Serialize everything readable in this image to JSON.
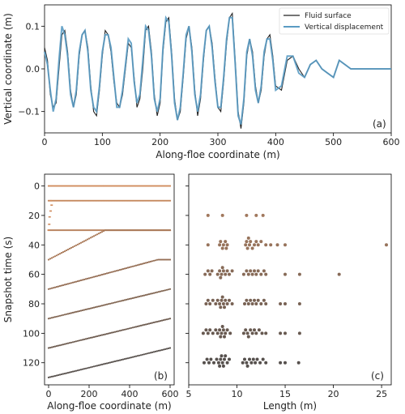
{
  "colors": {
    "fluid": "#222222",
    "displacement": "#5a9bc3",
    "axis": "#000000",
    "b_early": "#d08a5a",
    "b_late": "#4a4a4a",
    "c_early": "#b08060",
    "c_late": "#4a4a4a"
  },
  "chart_data": [
    {
      "panel": "a",
      "type": "line",
      "panel_label": "(a)",
      "xlabel": "Along-floe coordinate (m)",
      "ylabel": "Vertical coordinate (m)",
      "xlim": [
        0,
        600
      ],
      "ylim": [
        -0.15,
        0.15
      ],
      "xticks": [
        0,
        100,
        200,
        300,
        400,
        500,
        600
      ],
      "yticks": [
        -0.1,
        0.0,
        0.1
      ],
      "ytick_labels": [
        "−0.1",
        "0.0",
        "0.1"
      ],
      "legend": {
        "placement": "top-right",
        "entries": [
          "Fluid surface",
          "Vertical displacement"
        ]
      },
      "series": [
        {
          "name": "Fluid surface",
          "color_key": "fluid",
          "x": [
            0,
            5,
            10,
            15,
            20,
            25,
            30,
            35,
            40,
            45,
            50,
            55,
            60,
            65,
            70,
            75,
            80,
            85,
            90,
            95,
            100,
            105,
            110,
            115,
            120,
            125,
            130,
            135,
            140,
            145,
            150,
            155,
            160,
            165,
            170,
            175,
            180,
            185,
            190,
            195,
            200,
            205,
            210,
            215,
            220,
            225,
            230,
            235,
            240,
            245,
            250,
            255,
            260,
            265,
            270,
            275,
            280,
            285,
            290,
            295,
            300,
            305,
            310,
            315,
            320,
            325,
            330,
            335,
            340,
            345,
            350,
            355,
            360,
            365,
            370,
            375,
            380,
            385,
            390,
            395,
            400,
            410,
            420,
            430,
            440,
            450,
            460,
            470,
            480,
            490,
            500,
            510,
            520,
            530,
            540,
            550,
            560,
            570,
            580,
            590,
            600
          ],
          "y": [
            0.05,
            0.02,
            -0.06,
            -0.09,
            -0.08,
            0.0,
            0.08,
            0.09,
            0.04,
            -0.05,
            -0.09,
            -0.06,
            0.03,
            0.08,
            0.09,
            0.05,
            -0.04,
            -0.1,
            -0.11,
            -0.05,
            0.03,
            0.09,
            0.08,
            0.04,
            -0.03,
            -0.08,
            -0.09,
            -0.06,
            0.0,
            0.06,
            0.05,
            -0.02,
            -0.09,
            -0.07,
            0.0,
            0.09,
            0.1,
            0.04,
            -0.06,
            -0.11,
            -0.08,
            0.04,
            0.11,
            0.12,
            0.04,
            -0.07,
            -0.12,
            -0.1,
            -0.02,
            0.07,
            0.1,
            0.05,
            -0.05,
            -0.11,
            -0.07,
            0.02,
            0.09,
            0.1,
            0.06,
            -0.02,
            -0.09,
            -0.1,
            -0.03,
            0.06,
            0.12,
            0.13,
            0.02,
            -0.1,
            -0.14,
            -0.08,
            0.03,
            0.07,
            0.04,
            -0.04,
            -0.08,
            -0.05,
            0.03,
            0.07,
            0.08,
            0.03,
            -0.04,
            -0.05,
            0.02,
            0.03,
            0.0,
            -0.02,
            0.01,
            0.02,
            0.0,
            -0.01,
            -0.02,
            0.02,
            0.01,
            0.0,
            0.0,
            0.0,
            0.0,
            0.0,
            0.0,
            0.0,
            0.0
          ]
        },
        {
          "name": "Vertical displacement",
          "color_key": "displacement",
          "x": [
            0,
            5,
            10,
            15,
            20,
            25,
            30,
            35,
            40,
            45,
            50,
            55,
            60,
            65,
            70,
            75,
            80,
            85,
            90,
            95,
            100,
            105,
            110,
            115,
            120,
            125,
            130,
            135,
            140,
            145,
            150,
            155,
            160,
            165,
            170,
            175,
            180,
            185,
            190,
            195,
            200,
            205,
            210,
            215,
            220,
            225,
            230,
            235,
            240,
            245,
            250,
            255,
            260,
            265,
            270,
            275,
            280,
            285,
            290,
            295,
            300,
            305,
            310,
            315,
            320,
            325,
            330,
            335,
            340,
            345,
            350,
            355,
            360,
            365,
            370,
            375,
            380,
            385,
            390,
            395,
            400,
            410,
            420,
            430,
            440,
            450,
            460,
            470,
            480,
            490,
            500,
            510,
            520,
            530,
            540,
            550,
            560,
            570,
            580,
            590,
            600
          ],
          "y": [
            0.04,
            0.01,
            -0.05,
            -0.1,
            -0.07,
            0.02,
            0.1,
            0.08,
            0.03,
            -0.06,
            -0.09,
            -0.05,
            0.04,
            0.08,
            0.09,
            0.04,
            -0.05,
            -0.09,
            -0.1,
            -0.04,
            0.04,
            0.08,
            0.08,
            0.05,
            -0.02,
            -0.09,
            -0.09,
            -0.05,
            0.01,
            0.07,
            0.06,
            -0.03,
            -0.08,
            -0.06,
            0.02,
            0.1,
            0.09,
            0.03,
            -0.07,
            -0.1,
            -0.07,
            0.05,
            0.12,
            0.11,
            0.03,
            -0.08,
            -0.12,
            -0.09,
            -0.01,
            0.08,
            0.1,
            0.04,
            -0.06,
            -0.1,
            -0.06,
            0.03,
            0.09,
            0.1,
            0.05,
            -0.03,
            -0.09,
            -0.09,
            -0.02,
            0.07,
            0.12,
            0.12,
            0.01,
            -0.11,
            -0.13,
            -0.07,
            0.04,
            0.07,
            0.03,
            -0.05,
            -0.08,
            -0.04,
            0.04,
            0.07,
            0.07,
            0.02,
            -0.05,
            -0.04,
            0.03,
            0.03,
            -0.01,
            -0.02,
            0.01,
            0.02,
            0.0,
            -0.01,
            -0.02,
            0.02,
            0.01,
            0.0,
            0.0,
            0.0,
            0.0,
            0.0,
            0.0,
            0.0,
            0.0
          ]
        }
      ]
    },
    {
      "panel": "b",
      "type": "scatter",
      "panel_label": "(b)",
      "xlabel": "Along-floe coordinate (m)",
      "ylabel": "Snapshot time (s)",
      "xlim": [
        -20,
        620
      ],
      "ylim": [
        135,
        -8
      ],
      "xticks": [
        0,
        200,
        400,
        600
      ],
      "yticks": [
        0,
        20,
        40,
        60,
        80,
        100,
        120
      ],
      "snapshots": [
        {
          "time": 0,
          "x_start": 0,
          "x_end": 600,
          "y_at_start": 0,
          "y_at_end": 0,
          "ramp_end_x": 0,
          "shade": 0
        },
        {
          "time": 10,
          "x_start": 0,
          "x_end": 600,
          "y_at_start": 10,
          "y_at_end": 10,
          "ramp_end_x": 0,
          "shade": 0.1
        },
        {
          "time": 30,
          "x_start": 0,
          "x_end": 600,
          "y_at_start": 30,
          "y_at_end": 30,
          "ramp_end_x": 0,
          "shade": 0.2
        },
        {
          "time": 50,
          "x_start": 0,
          "x_end": 600,
          "y_at_start": 50,
          "y_at_end": 30,
          "ramp_end_x": 280,
          "shade": 0.3
        },
        {
          "time": 70,
          "x_start": 0,
          "x_end": 600,
          "y_at_start": 70,
          "y_at_end": 50,
          "ramp_end_x": 540,
          "shade": 0.45
        },
        {
          "time": 90,
          "x_start": 0,
          "x_end": 600,
          "y_at_start": 90,
          "y_at_end": 70,
          "ramp_end_x": 600,
          "shade": 0.6
        },
        {
          "time": 110,
          "x_start": 0,
          "x_end": 600,
          "y_at_start": 110,
          "y_at_end": 90,
          "ramp_end_x": 600,
          "shade": 0.75
        },
        {
          "time": 130,
          "x_start": 0,
          "x_end": 600,
          "y_at_start": 130,
          "y_at_end": 110,
          "ramp_end_x": 600,
          "shade": 0.9
        }
      ],
      "staircase": [
        {
          "x": 10,
          "y": 10
        },
        {
          "x": 15,
          "y": 13
        },
        {
          "x": 10,
          "y": 17
        },
        {
          "x": 5,
          "y": 21
        },
        {
          "x": 3,
          "y": 26
        },
        {
          "x": 0,
          "y": 30
        }
      ]
    },
    {
      "panel": "c",
      "type": "scatter",
      "panel_label": "(c)",
      "xlabel": "Length (m)",
      "xlim": [
        5,
        26
      ],
      "xticks": [
        5,
        10,
        15,
        20,
        25
      ],
      "rows": [
        {
          "time": 20,
          "lengths": [
            7.0,
            8.5,
            11.0,
            12.0,
            12.7
          ],
          "shade": 0.15
        },
        {
          "time": 40,
          "lengths": [
            7.0,
            8.2,
            8.3,
            8.5,
            8.6,
            8.8,
            8.9,
            9.0,
            10.9,
            11.0,
            11.1,
            11.2,
            11.3,
            11.4,
            11.6,
            11.8,
            12.0,
            12.2,
            12.5,
            13.0,
            13.5,
            14.2,
            15.0,
            25.5
          ],
          "shade": 0.25
        },
        {
          "time": 60,
          "lengths": [
            6.7,
            7.0,
            7.2,
            7.4,
            8.0,
            8.2,
            8.3,
            8.4,
            8.5,
            8.6,
            8.8,
            9.0,
            9.2,
            9.5,
            10.7,
            11.0,
            11.2,
            11.4,
            11.6,
            11.8,
            12.0,
            12.2,
            12.5,
            12.8,
            13.0,
            15.0,
            16.5,
            20.6
          ],
          "shade": 0.4
        },
        {
          "time": 80,
          "lengths": [
            6.8,
            7.0,
            7.2,
            7.5,
            7.8,
            8.0,
            8.2,
            8.3,
            8.4,
            8.5,
            8.6,
            8.7,
            8.8,
            9.0,
            9.2,
            9.5,
            10.8,
            11.0,
            11.2,
            11.4,
            11.6,
            11.8,
            12.0,
            12.2,
            12.5,
            12.8,
            13.0,
            14.5,
            15.0,
            16.5
          ],
          "shade": 0.55
        },
        {
          "time": 100,
          "lengths": [
            6.5,
            6.8,
            7.0,
            7.2,
            7.5,
            7.8,
            8.0,
            8.2,
            8.3,
            8.4,
            8.5,
            8.6,
            8.7,
            8.8,
            9.0,
            9.3,
            10.7,
            10.9,
            11.1,
            11.2,
            11.4,
            11.6,
            11.8,
            12.0,
            12.3,
            12.6,
            13.0,
            14.5,
            15.0,
            16.5
          ],
          "shade": 0.72
        },
        {
          "time": 120,
          "lengths": [
            6.6,
            6.9,
            7.1,
            7.3,
            7.6,
            7.9,
            8.1,
            8.2,
            8.3,
            8.4,
            8.5,
            8.6,
            8.7,
            8.8,
            9.0,
            9.2,
            10.6,
            10.8,
            11.0,
            11.1,
            11.3,
            11.5,
            11.7,
            11.9,
            12.1,
            12.4,
            12.7,
            13.0,
            14.5,
            15.0,
            16.4
          ],
          "shade": 0.88
        }
      ]
    }
  ]
}
